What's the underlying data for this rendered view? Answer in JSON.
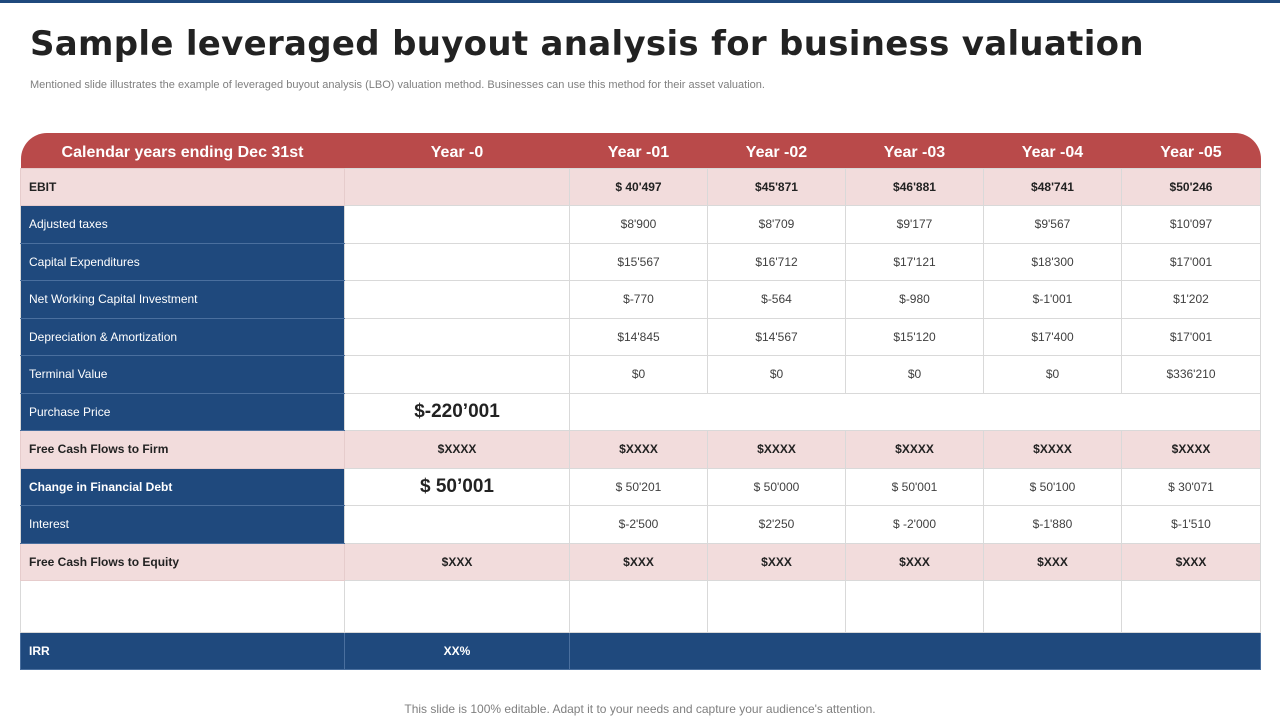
{
  "title": "Sample leveraged buyout analysis for business valuation",
  "subtitle": "Mentioned slide illustrates the example of leveraged buyout analysis (LBO) valuation method. Businesses can use this method for their asset valuation.",
  "footer": "This slide is 100% editable. Adapt it to your needs and capture your audience's attention.",
  "colors": {
    "header_red": "#b94a4a",
    "label_blue": "#1f497d",
    "highlight_pink": "#f2dcdc"
  },
  "table": {
    "headers": [
      "Calendar years ending Dec 31st",
      "Year -0",
      "Year -01",
      "Year -02",
      "Year -03",
      "Year -04",
      "Year -05"
    ],
    "rows": [
      {
        "label": "EBIT",
        "y0": "",
        "values": [
          "$ 40'497",
          "$45'871",
          "$46'881",
          "$48'741",
          "$50'246"
        ]
      },
      {
        "label": "Adjusted taxes",
        "y0": "",
        "values": [
          "$8'900",
          "$8'709",
          "$9'177",
          "$9'567",
          "$10'097"
        ]
      },
      {
        "label": "Capital Expenditures",
        "y0": "",
        "values": [
          "$15'567",
          "$16'712",
          "$17'121",
          "$18'300",
          "$17'001"
        ]
      },
      {
        "label": "Net Working Capital Investment",
        "y0": "",
        "values": [
          "$-770",
          "$-564",
          "$-980",
          "$-1'001",
          "$1'202"
        ]
      },
      {
        "label": "Depreciation & Amortization",
        "y0": "",
        "values": [
          "$14'845",
          "$14'567",
          "$15'120",
          "$17'400",
          "$17'001"
        ]
      },
      {
        "label": "Terminal Value",
        "y0": "",
        "values": [
          "$0",
          "$0",
          "$0",
          "$0",
          "$336'210"
        ]
      },
      {
        "label": "Purchase Price",
        "y0": "$-220’001"
      },
      {
        "label": "Free Cash Flows  to Firm",
        "y0": "$XXXX",
        "values": [
          "$XXXX",
          "$XXXX",
          "$XXXX",
          "$XXXX",
          "$XXXX"
        ]
      },
      {
        "label": "Change in Financial  Debt",
        "y0": "$ 50’001",
        "values": [
          "$ 50'201",
          "$ 50'000",
          "$ 50'001",
          "$ 50'100",
          "$ 30'071"
        ]
      },
      {
        "label": "Interest",
        "y0": "",
        "values": [
          "$-2'500",
          "$2'250",
          "$ -2'000",
          "$-1'880",
          "$-1'510"
        ]
      },
      {
        "label": "Free Cash Flows  to Equity",
        "y0": "$XXX",
        "values": [
          "$XXX",
          "$XXX",
          "$XXX",
          "$XXX",
          "$XXX"
        ]
      },
      {
        "label": "IRR",
        "y0": "XX%"
      }
    ]
  }
}
